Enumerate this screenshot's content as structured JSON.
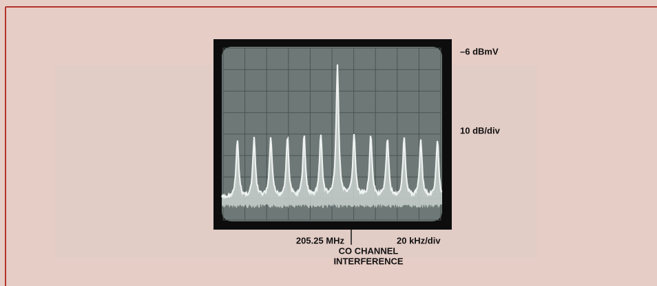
{
  "labels": {
    "reference_level": "–6 dBmV",
    "vertical_scale": "10 dB/div",
    "center_frequency": "205.25 MHz",
    "horizontal_scale": "20 kHz/div",
    "marker_line1": "CO CHANNEL",
    "marker_line2": "INTERFERENCE"
  }
}
